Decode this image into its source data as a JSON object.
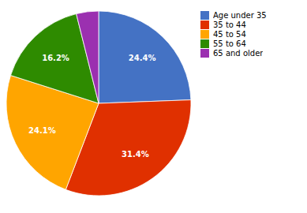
{
  "chart_data": {
    "type": "pie",
    "categories": [
      "Age under 35",
      "35 to 44",
      "45 to 54",
      "55 to 64",
      "65 and older"
    ],
    "values": [
      24.4,
      31.4,
      24.1,
      16.2,
      3.9
    ],
    "colors": [
      "#4472C4",
      "#E03000",
      "#FFA500",
      "#2E8B00",
      "#9B30B0"
    ],
    "data_labels": true,
    "value_labels": [
      "24.4%",
      "31.4%",
      "24.1%",
      "16.2%",
      null
    ],
    "legend": "right"
  }
}
